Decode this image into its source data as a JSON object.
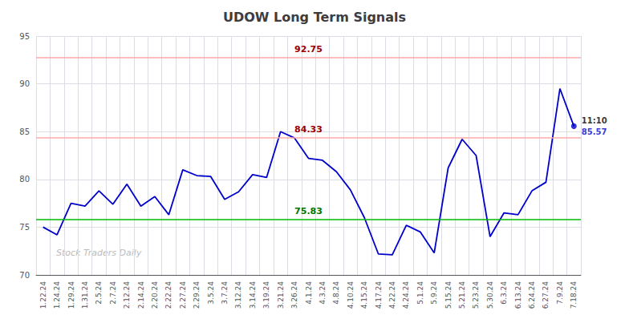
{
  "chart_data": {
    "type": "line",
    "title": "UDOW Long Term Signals",
    "categories": [
      "1.22.24",
      "1.24.24",
      "1.29.24",
      "1.31.24",
      "2.5.24",
      "2.7.24",
      "2.12.24",
      "2.14.24",
      "2.20.24",
      "2.22.24",
      "2.27.24",
      "2.29.24",
      "3.5.24",
      "3.7.24",
      "3.12.24",
      "3.14.24",
      "3.19.24",
      "3.21.24",
      "3.26.24",
      "4.1.24",
      "4.3.24",
      "4.8.24",
      "4.10.24",
      "4.15.24",
      "4.17.24",
      "4.22.24",
      "4.24.24",
      "5.1.24",
      "5.9.24",
      "5.15.24",
      "5.21.24",
      "5.23.24",
      "5.30.24",
      "6.3.24",
      "6.13.24",
      "6.24.24",
      "6.27.24",
      "7.9.24",
      "7.18.24"
    ],
    "values": [
      75.0,
      74.2,
      77.5,
      77.2,
      78.8,
      77.4,
      79.5,
      77.2,
      78.2,
      76.3,
      81.0,
      80.4,
      80.3,
      77.9,
      78.7,
      80.5,
      80.2,
      85.0,
      84.33,
      82.2,
      82.0,
      80.8,
      78.9,
      76.0,
      72.2,
      72.1,
      75.2,
      74.5,
      72.3,
      81.2,
      84.2,
      82.5,
      74.0,
      76.5,
      76.3,
      78.8,
      79.7,
      89.5,
      85.57
    ],
    "color": "#0000cc",
    "ylim": [
      70,
      95
    ],
    "yticks": [
      70,
      75,
      80,
      85,
      90,
      95
    ],
    "grid": true,
    "reference_lines": [
      {
        "value": 92.75,
        "color": "#ffaaaa",
        "label_color": "#990000"
      },
      {
        "value": 84.33,
        "color": "#ffaaaa",
        "label_color": "#990000"
      },
      {
        "value": 75.83,
        "color": "#00bb00",
        "label_color": "#007700"
      }
    ],
    "end_label": {
      "text": "11:10",
      "value": 85.57,
      "color": "#0000cc"
    },
    "watermark": "Stock Traders Daily"
  }
}
